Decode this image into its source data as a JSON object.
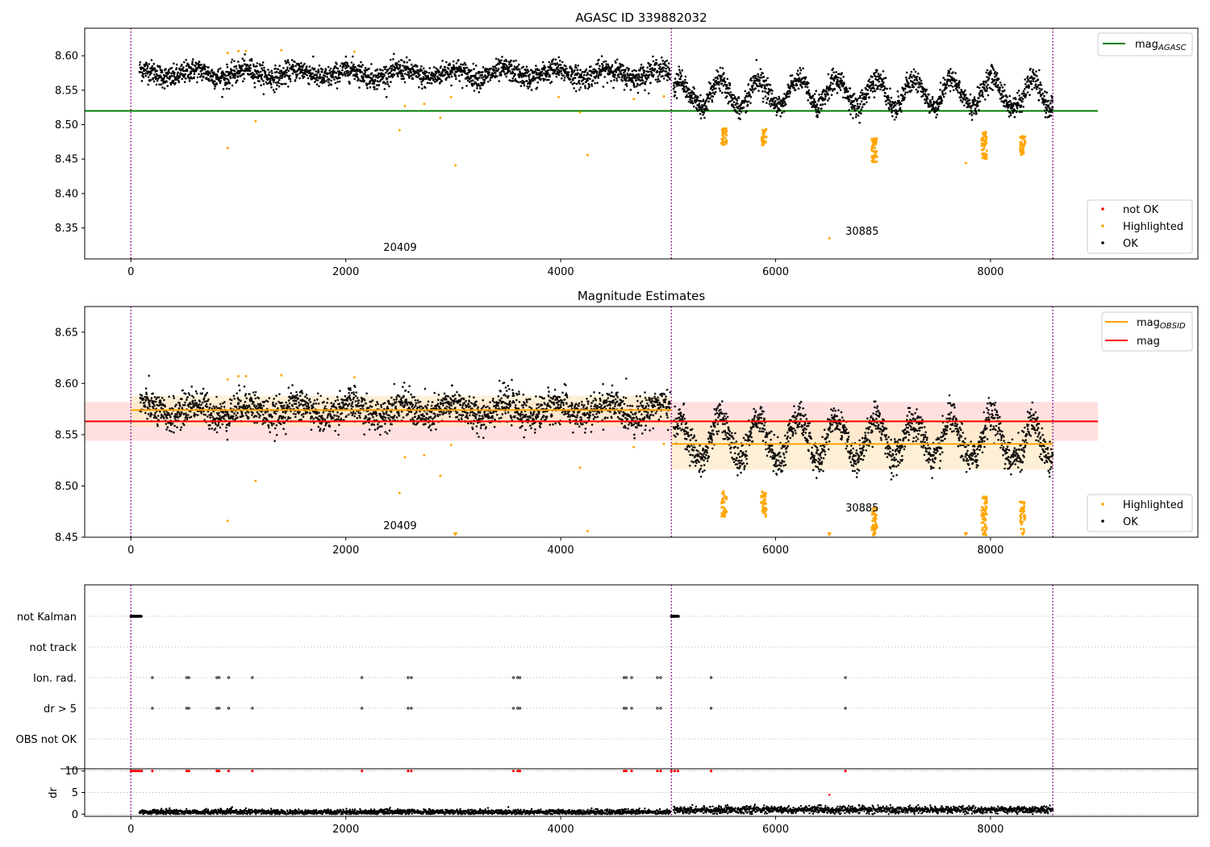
{
  "figure": {
    "suptitle": "AGASC ID 339882032"
  },
  "colors": {
    "ok": "#000000",
    "highlighted": "#ffa500",
    "not_ok": "#ff0000",
    "mag_agasc": "#008000",
    "mag_obsid": "#ffa500",
    "mag": "#ff0000",
    "obsid_boundary": "#800080",
    "band_mag": "#ffd6d6",
    "band_obsid": "#fdebc8"
  },
  "chart_data": [
    {
      "type": "scatter",
      "title": "AGASC ID 339882032",
      "xlim": [
        -430,
        9930
      ],
      "ylim": [
        8.305,
        8.64
      ],
      "xticks": [
        0,
        2000,
        4000,
        6000,
        8000
      ],
      "yticks": [
        8.35,
        8.4,
        8.45,
        8.5,
        8.55,
        8.6
      ],
      "ytick_labels": [
        "8.35",
        "8.40",
        "8.45",
        "8.50",
        "8.55",
        "8.60"
      ],
      "obsid_boundaries": [
        0,
        5030,
        8580
      ],
      "obsid_labels": [
        {
          "text": "20409",
          "x": 2350,
          "y": 8.317
        },
        {
          "text": "30885",
          "x": 6650,
          "y": 8.34
        }
      ],
      "reference_lines": [
        {
          "name": "mag",
          "sub": "AGASC",
          "value": 8.52,
          "x_range": [
            -430,
            9000
          ],
          "color_key": "mag_agasc"
        }
      ],
      "segments": [
        {
          "x_range": [
            80,
            5020
          ],
          "mean": 8.574,
          "amplitude": 0.006,
          "noise": 0.008,
          "period": 480
        },
        {
          "x_range": [
            5050,
            8580
          ],
          "mean": 8.548,
          "amplitude": 0.022,
          "noise": 0.008,
          "period": 360
        }
      ],
      "dips": [
        {
          "x": 5180,
          "y": 8.505
        },
        {
          "x": 5550,
          "y": 8.52
        },
        {
          "x": 5900,
          "y": 8.515
        },
        {
          "x": 6200,
          "y": 8.52
        },
        {
          "x": 6600,
          "y": 8.52
        },
        {
          "x": 6900,
          "y": 8.515
        },
        {
          "x": 7290,
          "y": 8.515
        },
        {
          "x": 7700,
          "y": 8.515
        },
        {
          "x": 8300,
          "y": 8.5
        }
      ],
      "highlighted_points": [
        [
          900,
          8.466
        ],
        [
          1000,
          8.607
        ],
        [
          1070,
          8.607
        ],
        [
          900,
          8.604
        ],
        [
          1160,
          8.505
        ],
        [
          1400,
          8.608
        ],
        [
          2080,
          8.606
        ],
        [
          2500,
          8.492
        ],
        [
          2550,
          8.527
        ],
        [
          2730,
          8.53
        ],
        [
          2880,
          8.51
        ],
        [
          2980,
          8.54
        ],
        [
          3020,
          8.441
        ],
        [
          3980,
          8.54
        ],
        [
          4180,
          8.518
        ],
        [
          4250,
          8.456
        ],
        [
          4680,
          8.537
        ],
        [
          4960,
          8.541
        ],
        [
          6500,
          8.335
        ],
        [
          7770,
          8.444
        ]
      ],
      "highlighted_clusters": [
        {
          "x": 5520,
          "y_range": [
            8.47,
            8.495
          ],
          "n": 40
        },
        {
          "x": 5890,
          "y_range": [
            8.47,
            8.495
          ],
          "n": 40
        },
        {
          "x": 6920,
          "y_range": [
            8.445,
            8.48
          ],
          "n": 60
        },
        {
          "x": 7940,
          "y_range": [
            8.45,
            8.49
          ],
          "n": 60
        },
        {
          "x": 8300,
          "y_range": [
            8.455,
            8.485
          ],
          "n": 40
        }
      ],
      "legend_lines": [
        {
          "label": "mag",
          "sub": "AGASC",
          "color_key": "mag_agasc"
        }
      ],
      "legend_points": [
        {
          "label": "not OK",
          "color_key": "not_ok"
        },
        {
          "label": "Highlighted",
          "color_key": "highlighted"
        },
        {
          "label": "OK",
          "color_key": "ok"
        }
      ]
    },
    {
      "type": "scatter",
      "title": "Magnitude Estimates",
      "xlim": [
        -430,
        9930
      ],
      "ylim": [
        8.45,
        8.675
      ],
      "xticks": [
        0,
        2000,
        4000,
        6000,
        8000
      ],
      "yticks": [
        8.45,
        8.5,
        8.55,
        8.6,
        8.65
      ],
      "ytick_labels": [
        "8.45",
        "8.50",
        "8.55",
        "8.60",
        "8.65"
      ],
      "obsid_boundaries": [
        0,
        5030,
        8580
      ],
      "obsid_labels": [
        {
          "text": "20409",
          "x": 2350,
          "y": 8.458
        },
        {
          "text": "30885",
          "x": 6650,
          "y": 8.475
        }
      ],
      "bands": [
        {
          "x_range": [
            -430,
            9000
          ],
          "y_range": [
            8.544,
            8.582
          ],
          "color_key": "band_mag"
        },
        {
          "x_range": [
            0,
            5030
          ],
          "y_range": [
            8.558,
            8.588
          ],
          "color_key": "band_obsid"
        },
        {
          "x_range": [
            5030,
            8580
          ],
          "y_range": [
            8.516,
            8.566
          ],
          "color_key": "band_obsid"
        }
      ],
      "reference_lines": [
        {
          "name": "mag",
          "sub": "OBSID",
          "value": 8.574,
          "x_range": [
            0,
            5030
          ],
          "color_key": "mag_obsid"
        },
        {
          "name": "mag",
          "sub": "OBSID",
          "value": 8.541,
          "x_range": [
            5030,
            8580
          ],
          "color_key": "mag_obsid"
        },
        {
          "name": "mag",
          "sub": "",
          "value": 8.563,
          "x_range": [
            -430,
            9000
          ],
          "color_key": "mag"
        }
      ],
      "highlighted_points": [
        [
          900,
          8.466
        ],
        [
          1000,
          8.607
        ],
        [
          1070,
          8.607
        ],
        [
          900,
          8.604
        ],
        [
          1160,
          8.505
        ],
        [
          1400,
          8.608
        ],
        [
          2080,
          8.606
        ],
        [
          2500,
          8.493
        ],
        [
          2550,
          8.528
        ],
        [
          2730,
          8.53
        ],
        [
          2880,
          8.51
        ],
        [
          2980,
          8.54
        ],
        [
          4180,
          8.518
        ],
        [
          4250,
          8.456
        ],
        [
          4680,
          8.538
        ],
        [
          4960,
          8.541
        ]
      ],
      "clipped_markers": [
        3020,
        6500,
        6920,
        7770,
        7940,
        8300
      ],
      "legend_lines": [
        {
          "label": "mag",
          "sub": "OBSID",
          "color_key": "mag_obsid"
        },
        {
          "label": "mag",
          "sub": "",
          "color_key": "mag"
        }
      ],
      "legend_points": [
        {
          "label": "Highlighted",
          "color_key": "highlighted"
        },
        {
          "label": "OK",
          "color_key": "ok"
        }
      ]
    },
    {
      "type": "scatter",
      "xlim": [
        -430,
        9930
      ],
      "categories": [
        "not Kalman",
        "not track",
        "Ion. rad.",
        "dr > 5",
        "OBS not OK"
      ],
      "flags": {
        "not Kalman": [
          [
            0,
            100
          ],
          [
            5030,
            5100
          ]
        ],
        "not track": [],
        "Ion. rad.": [
          200,
          520,
          540,
          800,
          820,
          910,
          1130,
          2150,
          2580,
          2610,
          3560,
          3600,
          3620,
          4590,
          4610,
          4660,
          4900,
          4930,
          5400,
          6650
        ],
        "dr > 5": [
          200,
          520,
          540,
          800,
          820,
          910,
          1130,
          2150,
          2580,
          2610,
          3560,
          3600,
          3620,
          4590,
          4610,
          4660,
          4900,
          4930,
          5400,
          6650
        ],
        "OBS not OK": []
      }
    },
    {
      "type": "scatter",
      "ylabel": "dr",
      "xlim": [
        -430,
        9930
      ],
      "ylim": [
        -0.5,
        10.5
      ],
      "xticks": [
        0,
        2000,
        4000,
        6000,
        8000
      ],
      "yticks": [
        0,
        5,
        10
      ],
      "ytick_labels": [
        "0",
        "5",
        "10"
      ],
      "clipped_at": 10,
      "clipped_x": [
        0,
        20,
        40,
        60,
        80,
        100,
        200,
        520,
        540,
        800,
        820,
        910,
        1130,
        2150,
        2580,
        2610,
        3560,
        3600,
        3620,
        4590,
        4610,
        4660,
        4900,
        4930,
        5030,
        5060,
        5090,
        5400,
        6650
      ],
      "outlier_points": [
        [
          6500,
          4.5
        ]
      ],
      "segments": [
        {
          "x_range": [
            80,
            5020
          ],
          "mean": 0.5,
          "noise": 0.3
        },
        {
          "x_range": [
            5050,
            8580
          ],
          "mean": 1.0,
          "noise": 0.4
        }
      ]
    }
  ]
}
